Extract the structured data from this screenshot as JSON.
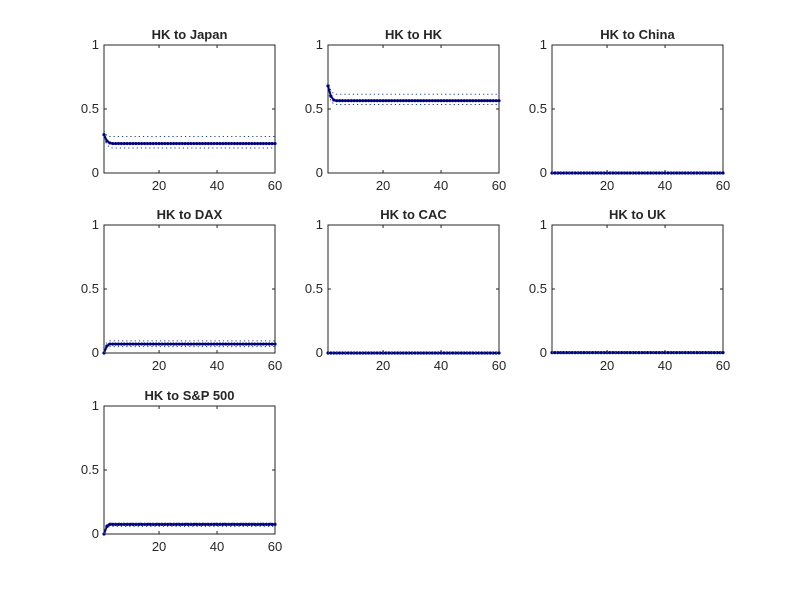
{
  "chart_data": [
    {
      "type": "line",
      "title": "HK to Japan",
      "xlim": [
        1,
        60
      ],
      "ylim": [
        0,
        1
      ],
      "xticks": [
        20,
        40,
        60
      ],
      "xtick_labels": [
        "20",
        "40",
        "60"
      ],
      "yticks": [
        0,
        0.5,
        1
      ],
      "ytick_labels": [
        "0",
        "0.5",
        "1"
      ],
      "x": [
        1,
        2,
        3,
        4,
        60
      ],
      "series": [
        {
          "role": "estimate",
          "values": [
            0.3,
            0.25,
            0.235,
            0.23,
            0.23
          ]
        },
        {
          "role": "upper",
          "values": [
            0.33,
            0.29,
            0.285,
            0.285,
            0.285
          ]
        },
        {
          "role": "lower",
          "values": [
            0.27,
            0.22,
            0.2,
            0.195,
            0.195
          ]
        }
      ]
    },
    {
      "type": "line",
      "title": "HK to HK",
      "xlim": [
        1,
        60
      ],
      "ylim": [
        0,
        1
      ],
      "xticks": [
        20,
        40,
        60
      ],
      "xtick_labels": [
        "20",
        "40",
        "60"
      ],
      "yticks": [
        0,
        0.5,
        1
      ],
      "ytick_labels": [
        "0",
        "0.5",
        "1"
      ],
      "x": [
        1,
        2,
        3,
        4,
        60
      ],
      "series": [
        {
          "role": "estimate",
          "values": [
            0.68,
            0.6,
            0.57,
            0.565,
            0.565
          ]
        },
        {
          "role": "upper",
          "values": [
            0.72,
            0.64,
            0.62,
            0.615,
            0.615
          ]
        },
        {
          "role": "lower",
          "values": [
            0.64,
            0.56,
            0.54,
            0.535,
            0.535
          ]
        }
      ]
    },
    {
      "type": "line",
      "title": "HK to China",
      "xlim": [
        1,
        60
      ],
      "ylim": [
        0,
        1
      ],
      "xticks": [
        20,
        40,
        60
      ],
      "xtick_labels": [
        "20",
        "40",
        "60"
      ],
      "yticks": [
        0,
        0.5,
        1
      ],
      "ytick_labels": [
        "0",
        "0.5",
        "1"
      ],
      "x": [
        1,
        60
      ],
      "series": [
        {
          "role": "estimate",
          "values": [
            0.0,
            0.0
          ]
        },
        {
          "role": "upper",
          "values": [
            0.005,
            0.005
          ]
        },
        {
          "role": "lower",
          "values": [
            0.0,
            0.0
          ]
        }
      ]
    },
    {
      "type": "line",
      "title": "HK to DAX",
      "xlim": [
        1,
        60
      ],
      "ylim": [
        0,
        1
      ],
      "xticks": [
        20,
        40,
        60
      ],
      "xtick_labels": [
        "20",
        "40",
        "60"
      ],
      "yticks": [
        0,
        0.5,
        1
      ],
      "ytick_labels": [
        "0",
        "0.5",
        "1"
      ],
      "x": [
        1,
        2,
        3,
        4,
        60
      ],
      "series": [
        {
          "role": "estimate",
          "values": [
            0.0,
            0.055,
            0.07,
            0.07,
            0.07
          ]
        },
        {
          "role": "upper",
          "values": [
            0.01,
            0.08,
            0.095,
            0.095,
            0.095
          ]
        },
        {
          "role": "lower",
          "values": [
            0.0,
            0.035,
            0.05,
            0.05,
            0.05
          ]
        }
      ]
    },
    {
      "type": "line",
      "title": "HK to CAC",
      "xlim": [
        1,
        60
      ],
      "ylim": [
        0,
        1
      ],
      "xticks": [
        20,
        40,
        60
      ],
      "xtick_labels": [
        "20",
        "40",
        "60"
      ],
      "yticks": [
        0,
        0.5,
        1
      ],
      "ytick_labels": [
        "0",
        "0.5",
        "1"
      ],
      "x": [
        1,
        60
      ],
      "series": [
        {
          "role": "estimate",
          "values": [
            0.0,
            0.0
          ]
        },
        {
          "role": "upper",
          "values": [
            0.005,
            0.005
          ]
        },
        {
          "role": "lower",
          "values": [
            0.0,
            0.0
          ]
        }
      ]
    },
    {
      "type": "line",
      "title": "HK to UK",
      "xlim": [
        1,
        60
      ],
      "ylim": [
        0,
        1
      ],
      "xticks": [
        20,
        40,
        60
      ],
      "xtick_labels": [
        "20",
        "40",
        "60"
      ],
      "yticks": [
        0,
        0.5,
        1
      ],
      "ytick_labels": [
        "0",
        "0.5",
        "1"
      ],
      "x": [
        1,
        60
      ],
      "series": [
        {
          "role": "estimate",
          "values": [
            0.003,
            0.003
          ]
        },
        {
          "role": "upper",
          "values": [
            0.008,
            0.008
          ]
        },
        {
          "role": "lower",
          "values": [
            0.0,
            0.0
          ]
        }
      ]
    },
    {
      "type": "line",
      "title": "HK to S&P 500",
      "xlim": [
        1,
        60
      ],
      "ylim": [
        0,
        1
      ],
      "xticks": [
        20,
        40,
        60
      ],
      "xtick_labels": [
        "20",
        "40",
        "60"
      ],
      "yticks": [
        0,
        0.5,
        1
      ],
      "ytick_labels": [
        "0",
        "0.5",
        "1"
      ],
      "x": [
        1,
        2,
        3,
        4,
        60
      ],
      "series": [
        {
          "role": "estimate",
          "values": [
            0.0,
            0.06,
            0.075,
            0.075,
            0.075
          ]
        },
        {
          "role": "upper",
          "values": [
            0.01,
            0.075,
            0.085,
            0.085,
            0.085
          ]
        },
        {
          "role": "lower",
          "values": [
            0.0,
            0.045,
            0.06,
            0.06,
            0.06
          ]
        }
      ]
    }
  ],
  "colors": {
    "estimate": "#00007f",
    "band": "#1f3f9a",
    "axis": "#262626"
  }
}
